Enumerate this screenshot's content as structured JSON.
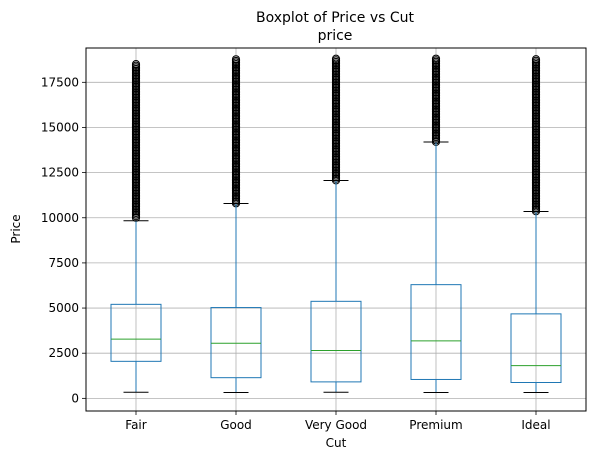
{
  "chart_data": {
    "type": "boxplot",
    "title": "Boxplot of Price vs Cut",
    "subtitle": "price",
    "xlabel": "Cut",
    "ylabel": "Price",
    "ylim": [
      -700,
      19400
    ],
    "yticks": [
      0,
      2500,
      5000,
      7500,
      10000,
      12500,
      15000,
      17500
    ],
    "grid": true,
    "categories": [
      "Fair",
      "Good",
      "Very Good",
      "Premium",
      "Ideal"
    ],
    "boxes": [
      {
        "category": "Fair",
        "whisker_low": 337,
        "q1": 2050,
        "median": 3282,
        "q3": 5206,
        "whisker_high": 9836,
        "outliers_from": 10000,
        "outliers_to": 18574
      },
      {
        "category": "Good",
        "whisker_low": 327,
        "q1": 1145,
        "median": 3050,
        "q3": 5028,
        "whisker_high": 10790,
        "outliers_from": 10800,
        "outliers_to": 18788
      },
      {
        "category": "Very Good",
        "whisker_low": 336,
        "q1": 912,
        "median": 2648,
        "q3": 5373,
        "whisker_high": 12063,
        "outliers_from": 12070,
        "outliers_to": 18818
      },
      {
        "category": "Premium",
        "whisker_low": 326,
        "q1": 1046,
        "median": 3185,
        "q3": 6296,
        "whisker_high": 14193,
        "outliers_from": 14200,
        "outliers_to": 18823
      },
      {
        "category": "Ideal",
        "whisker_low": 326,
        "q1": 878,
        "median": 1810,
        "q3": 4678,
        "whisker_high": 10347,
        "outliers_from": 10360,
        "outliers_to": 18806
      }
    ],
    "colors": {
      "box": "#1f77b4",
      "median": "#2ca02c",
      "whisker_cap": "#000000",
      "outlier": "#000000",
      "grid": "#b0b0b0"
    }
  }
}
